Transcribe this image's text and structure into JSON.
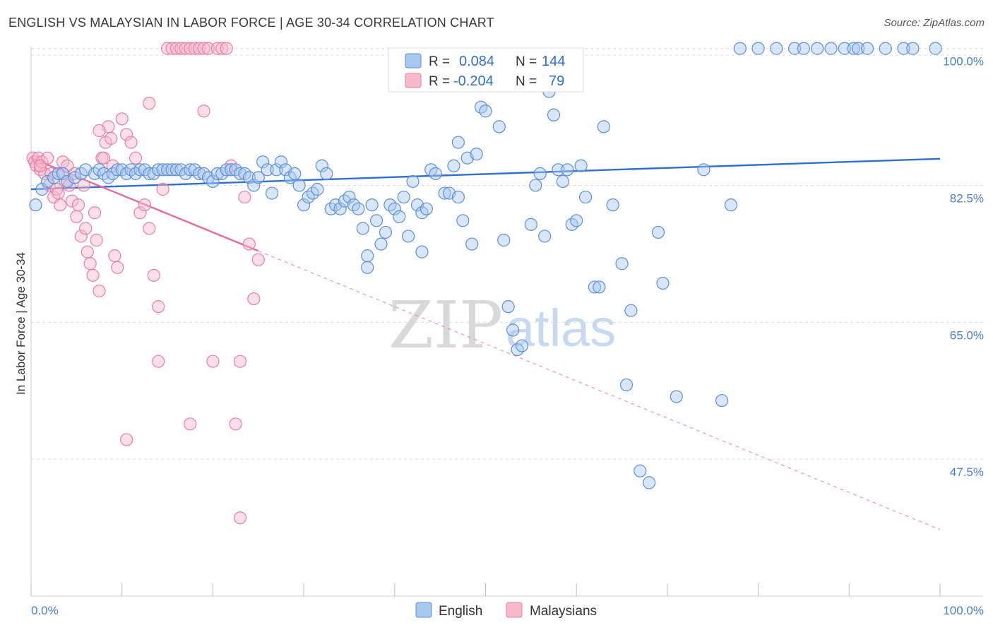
{
  "title": "ENGLISH VS MALAYSIAN IN LABOR FORCE | AGE 30-34 CORRELATION CHART",
  "source": "Source: ZipAtlas.com",
  "watermark": {
    "zip": "ZIP",
    "atlas": "atlas"
  },
  "colors": {
    "english_fill": "#a9c8f0",
    "english_stroke": "#5b8fd9",
    "english_line": "#2f6fd0",
    "malaysian_fill": "#f7b8cb",
    "malaysian_stroke": "#ea7fa0",
    "malaysian_line": "#e8699a",
    "grid": "#dcdcdc",
    "axis_text": "#4a7fd0"
  },
  "legend": {
    "rows": [
      {
        "r_label": "R =",
        "r_value": "0.084",
        "n_label": "N =",
        "n_value": "144"
      },
      {
        "r_label": "R =",
        "r_value": "-0.204",
        "n_label": "N =",
        "n_value": "79"
      }
    ]
  },
  "bottom_legend": [
    "English",
    "Malaysians"
  ],
  "chart_data": {
    "type": "scatter",
    "ylabel": "In Labor Force | Age 30-34",
    "xlabel": "",
    "xlim": [
      0,
      100
    ],
    "ylim": [
      30,
      101.5
    ],
    "x_tick_labels": [
      "0.0%",
      "100.0%"
    ],
    "y_ticks": [
      47.5,
      65.0,
      82.5,
      100.0
    ],
    "y_tick_labels": [
      "47.5%",
      "65.0%",
      "82.5%",
      "100.0%"
    ],
    "grid": "horizontal dashed",
    "series": [
      {
        "name": "English",
        "trend": {
          "x": [
            0,
            100
          ],
          "y": [
            82.0,
            85.9
          ],
          "solid_to": 100
        },
        "points": [
          [
            0.5,
            80
          ],
          [
            1.2,
            82
          ],
          [
            1.8,
            83
          ],
          [
            2.5,
            83.5
          ],
          [
            3.0,
            84
          ],
          [
            3.5,
            84
          ],
          [
            4.0,
            83
          ],
          [
            4.8,
            83.5
          ],
          [
            5.5,
            84
          ],
          [
            6.0,
            84.5
          ],
          [
            7.0,
            84
          ],
          [
            7.5,
            84.5
          ],
          [
            8.0,
            84
          ],
          [
            8.5,
            83.5
          ],
          [
            9.0,
            84
          ],
          [
            9.5,
            84.5
          ],
          [
            10.0,
            84.5
          ],
          [
            10.5,
            84
          ],
          [
            11.0,
            84.5
          ],
          [
            11.5,
            84
          ],
          [
            12.0,
            84.5
          ],
          [
            12.5,
            84.5
          ],
          [
            13.0,
            84
          ],
          [
            13.5,
            84
          ],
          [
            14.0,
            84.5
          ],
          [
            14.5,
            84.5
          ],
          [
            15.0,
            84.5
          ],
          [
            15.5,
            84.5
          ],
          [
            16.0,
            84.5
          ],
          [
            16.5,
            84.5
          ],
          [
            17.0,
            84
          ],
          [
            17.5,
            84.5
          ],
          [
            18.0,
            84.5
          ],
          [
            18.5,
            84
          ],
          [
            19.0,
            84
          ],
          [
            19.5,
            83.5
          ],
          [
            20.0,
            83
          ],
          [
            20.5,
            84
          ],
          [
            21.0,
            84
          ],
          [
            21.5,
            84.5
          ],
          [
            22.0,
            84.5
          ],
          [
            22.5,
            84.5
          ],
          [
            23.0,
            84
          ],
          [
            23.5,
            84
          ],
          [
            24.0,
            83.5
          ],
          [
            24.5,
            82.5
          ],
          [
            25.0,
            83.5
          ],
          [
            25.5,
            85.5
          ],
          [
            26.0,
            84.5
          ],
          [
            26.5,
            81.5
          ],
          [
            27.0,
            84.5
          ],
          [
            27.5,
            85.5
          ],
          [
            28.0,
            84.5
          ],
          [
            28.5,
            83.5
          ],
          [
            29.0,
            84
          ],
          [
            29.5,
            82.5
          ],
          [
            30.0,
            80
          ],
          [
            30.5,
            81
          ],
          [
            31.0,
            81.5
          ],
          [
            31.5,
            82
          ],
          [
            32.0,
            85
          ],
          [
            32.5,
            84
          ],
          [
            33.0,
            79.5
          ],
          [
            33.5,
            80
          ],
          [
            34.0,
            79.5
          ],
          [
            34.5,
            80.5
          ],
          [
            35.0,
            81
          ],
          [
            35.5,
            80
          ],
          [
            36.0,
            79.5
          ],
          [
            36.5,
            77
          ],
          [
            37.0,
            73.5
          ],
          [
            37.5,
            80
          ],
          [
            38.0,
            78
          ],
          [
            38.5,
            75
          ],
          [
            39.0,
            76.5
          ],
          [
            39.5,
            80
          ],
          [
            40.0,
            79.5
          ],
          [
            40.5,
            78.5
          ],
          [
            41.0,
            81
          ],
          [
            41.5,
            76
          ],
          [
            42.0,
            83
          ],
          [
            42.5,
            80
          ],
          [
            43.0,
            79
          ],
          [
            43.5,
            79.5
          ],
          [
            44.0,
            84.5
          ],
          [
            44.5,
            84
          ],
          [
            45.5,
            81.5
          ],
          [
            46.0,
            81.5
          ],
          [
            46.5,
            85
          ],
          [
            47.0,
            88
          ],
          [
            47.5,
            78
          ],
          [
            48.0,
            86
          ],
          [
            48.5,
            75
          ],
          [
            49.0,
            86.5
          ],
          [
            49.5,
            92.5
          ],
          [
            50.0,
            92
          ],
          [
            51.5,
            90
          ],
          [
            52.0,
            75.5
          ],
          [
            52.5,
            67
          ],
          [
            53.0,
            64
          ],
          [
            53.5,
            61.5
          ],
          [
            54.0,
            62
          ],
          [
            55.0,
            77.5
          ],
          [
            55.5,
            82.5
          ],
          [
            56.0,
            84
          ],
          [
            56.5,
            76
          ],
          [
            57.0,
            94.5
          ],
          [
            57.5,
            91.5
          ],
          [
            58.0,
            84.5
          ],
          [
            58.5,
            83
          ],
          [
            59.0,
            84.5
          ],
          [
            59.5,
            77.5
          ],
          [
            60.0,
            78
          ],
          [
            61.0,
            81
          ],
          [
            62.0,
            69.5
          ],
          [
            62.5,
            69.5
          ],
          [
            63.0,
            90
          ],
          [
            64.0,
            80
          ],
          [
            65.0,
            72.5
          ],
          [
            65.5,
            57
          ],
          [
            66.0,
            66.5
          ],
          [
            67.0,
            46
          ],
          [
            68.0,
            44.5
          ],
          [
            69.0,
            76.5
          ],
          [
            69.5,
            70
          ],
          [
            71.0,
            55.5
          ],
          [
            74.0,
            84.5
          ],
          [
            76.0,
            55
          ],
          [
            77.0,
            80
          ],
          [
            78.0,
            100
          ],
          [
            80.0,
            100
          ],
          [
            82.0,
            100
          ],
          [
            84.0,
            100
          ],
          [
            85.0,
            100
          ],
          [
            86.5,
            100
          ],
          [
            88.0,
            100
          ],
          [
            89.5,
            100
          ],
          [
            90.5,
            100
          ],
          [
            91.0,
            100
          ],
          [
            92.0,
            100
          ],
          [
            94.0,
            100
          ],
          [
            96.0,
            100
          ],
          [
            97.0,
            100
          ],
          [
            99.5,
            100
          ],
          [
            37.0,
            72
          ],
          [
            43.0,
            74
          ],
          [
            47.0,
            81
          ],
          [
            60.5,
            85
          ]
        ]
      },
      {
        "name": "Malaysians",
        "trend": {
          "x": [
            0,
            100
          ],
          "y": [
            86.0,
            38.5
          ],
          "solid_to": 25
        },
        "points": [
          [
            0.2,
            86
          ],
          [
            0.4,
            85.5
          ],
          [
            0.6,
            85
          ],
          [
            0.8,
            86
          ],
          [
            1.0,
            84.5
          ],
          [
            1.2,
            85.5
          ],
          [
            1.5,
            84
          ],
          [
            1.8,
            86
          ],
          [
            2.0,
            82.5
          ],
          [
            2.2,
            84
          ],
          [
            2.5,
            81
          ],
          [
            2.8,
            82
          ],
          [
            3.0,
            81.5
          ],
          [
            3.2,
            80
          ],
          [
            3.5,
            85.5
          ],
          [
            3.8,
            83
          ],
          [
            4.0,
            85
          ],
          [
            4.2,
            82.5
          ],
          [
            4.5,
            80.5
          ],
          [
            4.8,
            84
          ],
          [
            5.0,
            78.5
          ],
          [
            5.2,
            80
          ],
          [
            5.5,
            76
          ],
          [
            5.8,
            82.5
          ],
          [
            6.0,
            77
          ],
          [
            6.2,
            74
          ],
          [
            6.5,
            72.5
          ],
          [
            6.8,
            71
          ],
          [
            7.0,
            79
          ],
          [
            7.2,
            75.5
          ],
          [
            7.5,
            69
          ],
          [
            7.8,
            86
          ],
          [
            8.0,
            86
          ],
          [
            8.2,
            88
          ],
          [
            8.5,
            90
          ],
          [
            8.8,
            88.5
          ],
          [
            9.0,
            85
          ],
          [
            9.2,
            73.5
          ],
          [
            9.5,
            72
          ],
          [
            10.0,
            91
          ],
          [
            10.5,
            89
          ],
          [
            11.0,
            88
          ],
          [
            11.5,
            86
          ],
          [
            12.0,
            79
          ],
          [
            12.5,
            80
          ],
          [
            13.0,
            77
          ],
          [
            13.5,
            71
          ],
          [
            14.0,
            67
          ],
          [
            14.5,
            82
          ],
          [
            15.0,
            100
          ],
          [
            15.5,
            100
          ],
          [
            16.0,
            100
          ],
          [
            16.5,
            100
          ],
          [
            17.0,
            100
          ],
          [
            17.5,
            100
          ],
          [
            18.0,
            100
          ],
          [
            18.5,
            100
          ],
          [
            19.0,
            100
          ],
          [
            19.5,
            100
          ],
          [
            20.0,
            60
          ],
          [
            20.5,
            100
          ],
          [
            21.0,
            100
          ],
          [
            21.5,
            100
          ],
          [
            22.0,
            85
          ],
          [
            22.5,
            52
          ],
          [
            23.0,
            60
          ],
          [
            23.5,
            81
          ],
          [
            24.0,
            75
          ],
          [
            24.5,
            68
          ],
          [
            25.0,
            73
          ],
          [
            10.5,
            50
          ],
          [
            14.0,
            60
          ],
          [
            17.5,
            52
          ],
          [
            23.0,
            40
          ],
          [
            19.0,
            92
          ],
          [
            13.0,
            93
          ],
          [
            7.5,
            89.5
          ],
          [
            3.5,
            84
          ],
          [
            1.0,
            85
          ]
        ]
      }
    ]
  }
}
